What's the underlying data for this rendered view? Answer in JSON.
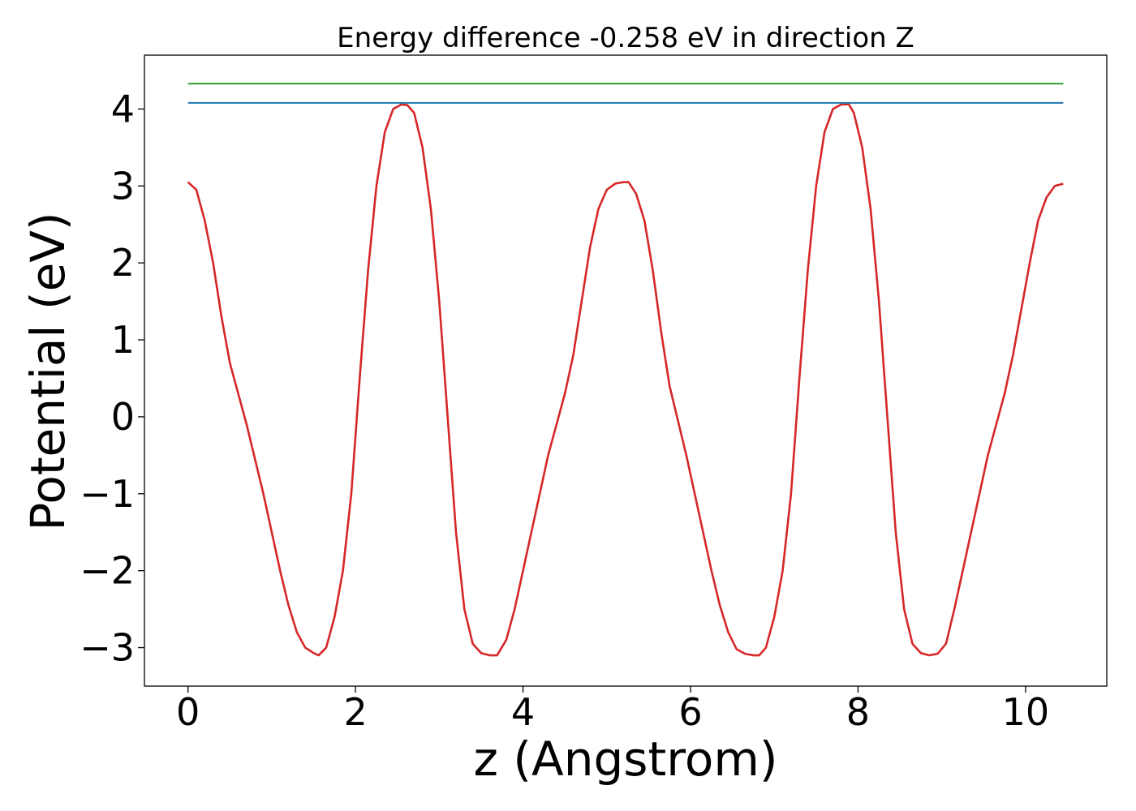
{
  "chart_data": {
    "type": "line",
    "title": "Energy difference -0.258 eV in direction Z",
    "xlabel": "z (Angstrom)",
    "ylabel": "Potential (eV)",
    "xlim": [
      -0.52,
      10.97
    ],
    "ylim": [
      -3.5,
      4.7
    ],
    "x_ticks": [
      0,
      2,
      4,
      6,
      8,
      10
    ],
    "x_tick_labels": [
      "0",
      "2",
      "4",
      "6",
      "8",
      "10"
    ],
    "y_ticks": [
      -3,
      -2,
      -1,
      0,
      1,
      2,
      3,
      4
    ],
    "y_tick_labels": [
      "−3",
      "−2",
      "−1",
      "0",
      "1",
      "2",
      "3",
      "4"
    ],
    "grid": false,
    "legend": "none",
    "series": [
      {
        "color": "#d62728",
        "x": [
          0,
          0.1,
          0.2,
          0.3,
          0.4,
          0.5,
          0.6,
          0.7,
          0.8,
          0.9,
          1.0,
          1.1,
          1.2,
          1.3,
          1.4,
          1.5,
          1.56,
          1.65,
          1.75,
          1.85,
          1.95,
          2.05,
          2.15,
          2.25,
          2.35,
          2.45,
          2.55,
          2.62,
          2.7,
          2.8,
          2.9,
          3.0,
          3.1,
          3.2,
          3.3,
          3.4,
          3.5,
          3.6,
          3.69,
          3.8,
          3.9,
          4.0,
          4.1,
          4.2,
          4.3,
          4.4,
          4.5,
          4.6,
          4.7,
          4.8,
          4.9,
          5.0,
          5.1,
          5.2,
          5.26,
          5.35,
          5.45,
          5.55,
          5.65,
          5.75,
          5.85,
          5.95,
          6.05,
          6.15,
          6.25,
          6.35,
          6.45,
          6.55,
          6.65,
          6.75,
          6.82,
          6.9,
          7.0,
          7.1,
          7.2,
          7.3,
          7.4,
          7.5,
          7.6,
          7.7,
          7.8,
          7.89,
          7.95,
          8.05,
          8.15,
          8.25,
          8.35,
          8.45,
          8.55,
          8.65,
          8.75,
          8.85,
          8.95,
          9.05,
          9.15,
          9.25,
          9.35,
          9.45,
          9.55,
          9.65,
          9.75,
          9.85,
          9.95,
          10.05,
          10.15,
          10.25,
          10.35,
          10.45
        ],
        "y": [
          3.05,
          2.95,
          2.55,
          2.0,
          1.3,
          0.7,
          0.3,
          -0.1,
          -0.55,
          -1.0,
          -1.5,
          -2.0,
          -2.45,
          -2.8,
          -3.0,
          -3.07,
          -3.1,
          -3.0,
          -2.6,
          -2.0,
          -1.0,
          0.5,
          1.9,
          3.0,
          3.7,
          4.0,
          4.06,
          4.05,
          3.95,
          3.5,
          2.7,
          1.5,
          0.0,
          -1.5,
          -2.5,
          -2.95,
          -3.07,
          -3.1,
          -3.1,
          -2.9,
          -2.5,
          -2.0,
          -1.5,
          -1.0,
          -0.5,
          -0.1,
          0.3,
          0.8,
          1.5,
          2.2,
          2.7,
          2.95,
          3.03,
          3.05,
          3.05,
          2.9,
          2.55,
          1.9,
          1.1,
          0.4,
          -0.05,
          -0.5,
          -1.0,
          -1.5,
          -2.0,
          -2.45,
          -2.8,
          -3.02,
          -3.08,
          -3.1,
          -3.1,
          -3.0,
          -2.6,
          -2.0,
          -1.0,
          0.5,
          1.9,
          3.0,
          3.7,
          4.0,
          4.06,
          4.06,
          3.95,
          3.5,
          2.7,
          1.5,
          0.0,
          -1.5,
          -2.5,
          -2.95,
          -3.07,
          -3.1,
          -3.08,
          -2.95,
          -2.5,
          -2.0,
          -1.5,
          -1.0,
          -0.5,
          -0.1,
          0.3,
          0.8,
          1.4,
          2.0,
          2.55,
          2.85,
          3.0,
          3.03
        ]
      },
      {
        "color": "#2ca02c",
        "x": [
          0,
          10.45
        ],
        "y": [
          4.33,
          4.33
        ]
      },
      {
        "color": "#1f77b4",
        "x": [
          0,
          10.45
        ],
        "y": [
          4.08,
          4.08
        ]
      }
    ]
  }
}
